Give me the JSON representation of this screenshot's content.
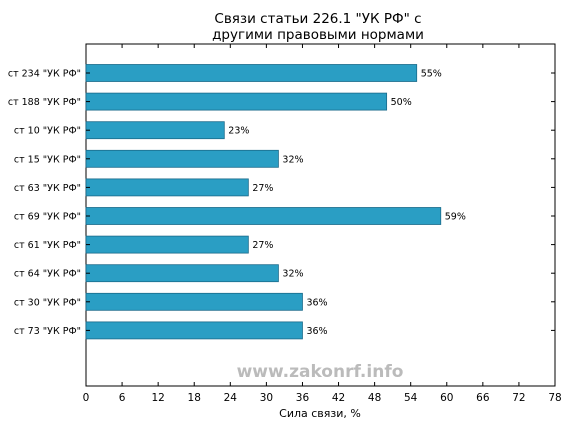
{
  "chart_data": {
    "type": "bar",
    "orientation": "horizontal",
    "title": "Связи статьи 226.1 \"УК РФ\" с\nдругими правовыми нормами",
    "xlabel": "Сила связи, %",
    "ylabel": "",
    "xlim": [
      0,
      78
    ],
    "xticks": [
      0,
      6,
      12,
      18,
      24,
      30,
      36,
      42,
      48,
      54,
      60,
      66,
      72,
      78
    ],
    "categories": [
      "ст 234 \"УК РФ\"",
      "ст 188 \"УК РФ\"",
      "ст 10 \"УК РФ\"",
      "ст 15 \"УК РФ\"",
      "ст 63 \"УК РФ\"",
      "ст 69 \"УК РФ\"",
      "ст 61 \"УК РФ\"",
      "ст 64 \"УК РФ\"",
      "ст 30 \"УК РФ\"",
      "ст 73 \"УК РФ\""
    ],
    "values": [
      55,
      50,
      23,
      32,
      27,
      59,
      27,
      32,
      36,
      36
    ],
    "data_labels": [
      "55%",
      "50%",
      "23%",
      "32%",
      "27%",
      "59%",
      "27%",
      "32%",
      "36%",
      "36%"
    ],
    "bar_color": "#2a9ec4",
    "bar_edge_color": "#1a6a8a",
    "grid": false
  },
  "watermark": "www.zakonrf.info"
}
